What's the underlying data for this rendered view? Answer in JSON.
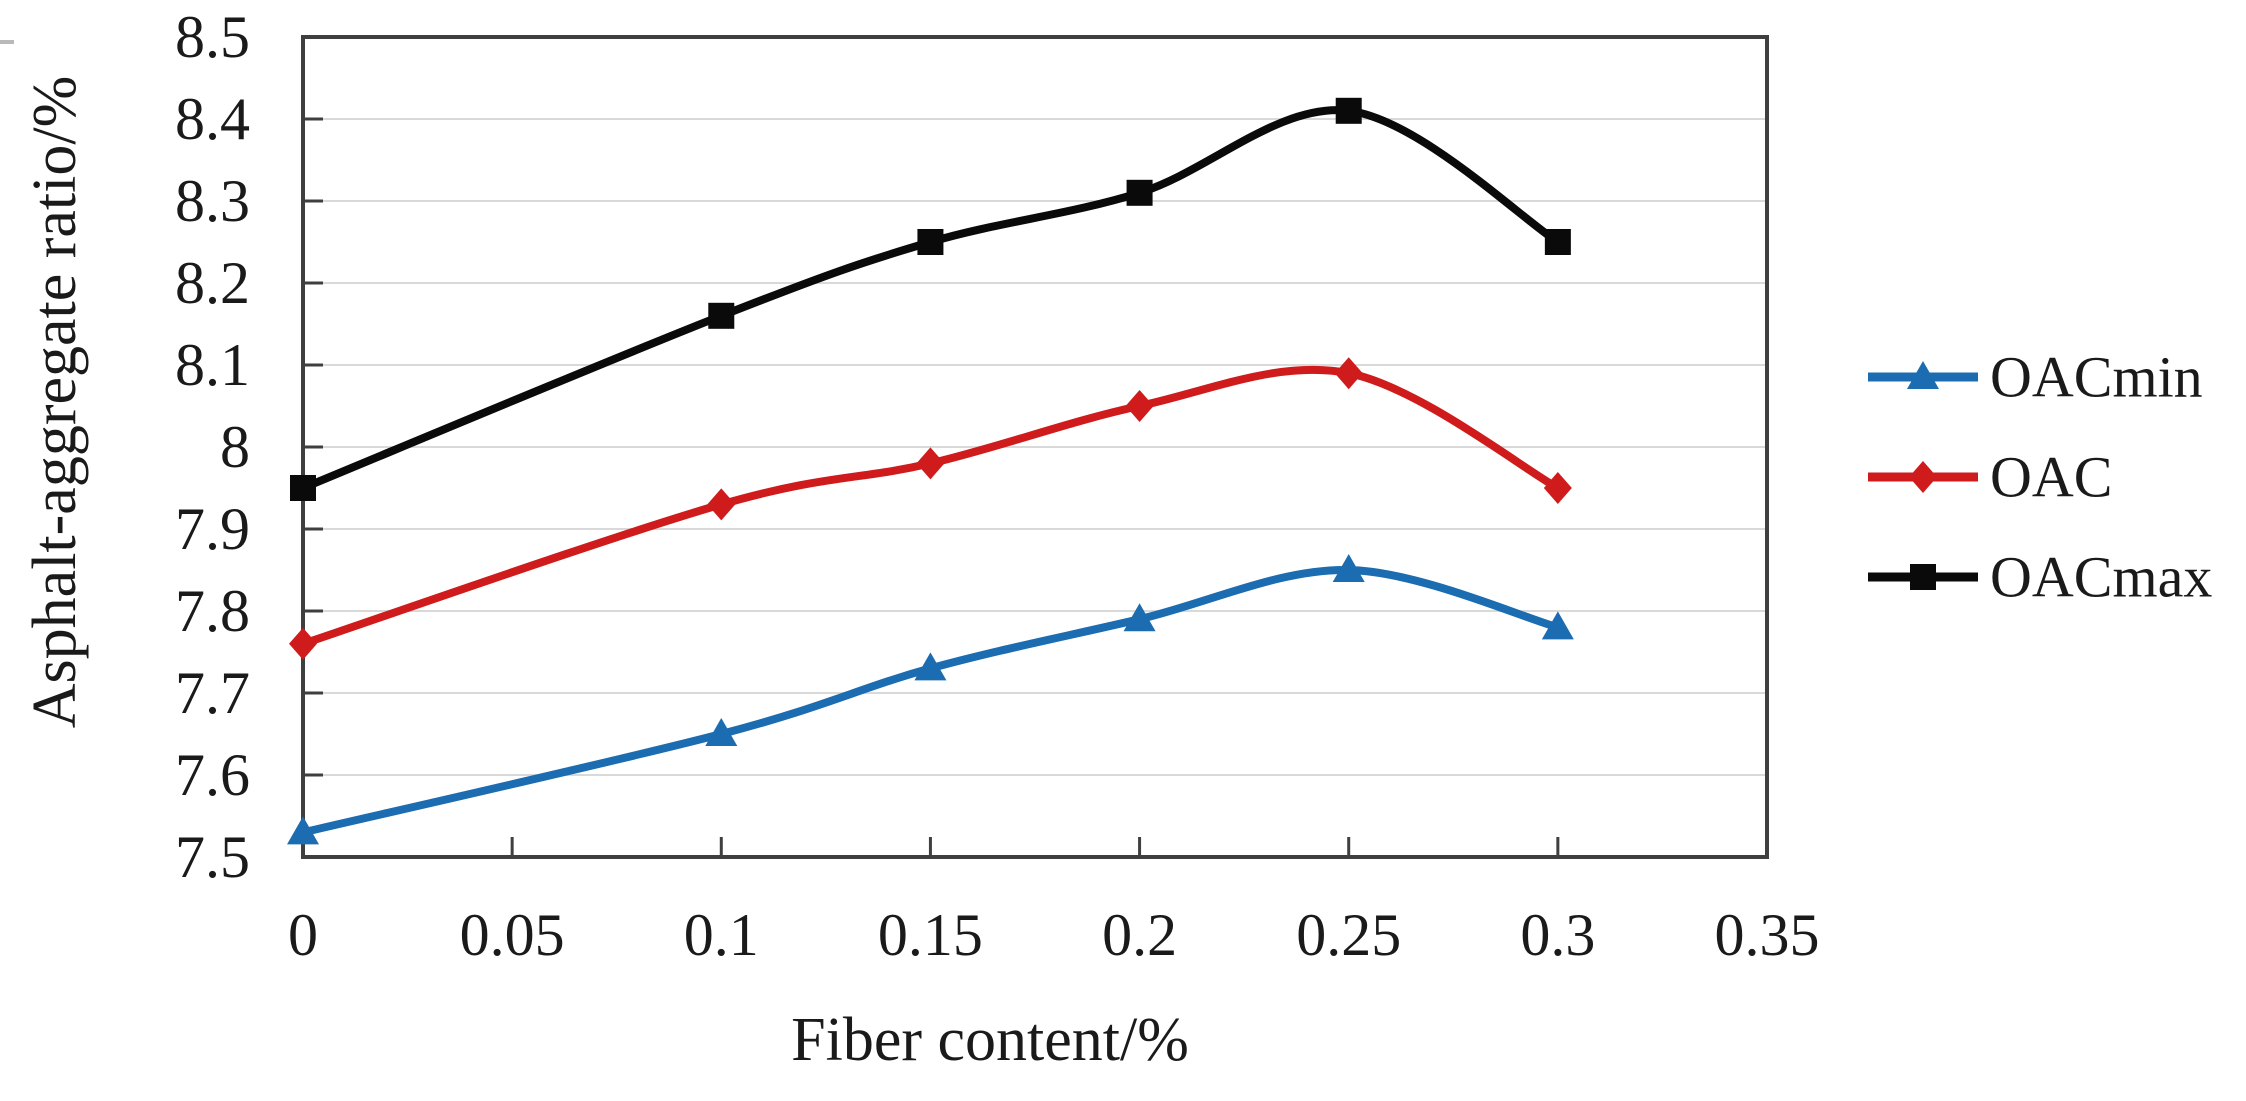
{
  "chart_data": {
    "type": "line",
    "title": "",
    "xlabel": "Fiber content/%",
    "ylabel": "Asphalt-aggregate ratio/%",
    "x": [
      0,
      0.1,
      0.15,
      0.2,
      0.25,
      0.3
    ],
    "series": [
      {
        "name": "OACmin",
        "color": "#1b6cb0",
        "marker": "triangle",
        "values": [
          7.53,
          7.65,
          7.73,
          7.79,
          7.85,
          7.78
        ]
      },
      {
        "name": "OAC",
        "color": "#cf1b1b",
        "marker": "diamond",
        "values": [
          7.76,
          7.93,
          7.98,
          8.05,
          8.09,
          7.95
        ]
      },
      {
        "name": "OACmax",
        "color": "#0a0a0a",
        "marker": "square",
        "values": [
          7.95,
          8.16,
          8.25,
          8.31,
          8.41,
          8.25
        ]
      }
    ],
    "xlim": [
      0,
      0.35
    ],
    "ylim": [
      7.5,
      8.5
    ],
    "x_ticks": [
      {
        "value": 0,
        "label": "0"
      },
      {
        "value": 0.05,
        "label": "0.05"
      },
      {
        "value": 0.1,
        "label": "0.1"
      },
      {
        "value": 0.15,
        "label": "0.15"
      },
      {
        "value": 0.2,
        "label": "0.2"
      },
      {
        "value": 0.25,
        "label": "0.25"
      },
      {
        "value": 0.3,
        "label": "0.3"
      },
      {
        "value": 0.35,
        "label": "0.35"
      }
    ],
    "y_ticks": [
      {
        "value": 8.5,
        "label": "8.5"
      },
      {
        "value": 8.4,
        "label": "8.4"
      },
      {
        "value": 8.3,
        "label": "8.3"
      },
      {
        "value": 8.2,
        "label": "8.2"
      },
      {
        "value": 8.1,
        "label": "8.1"
      },
      {
        "value": 8.0,
        "label": "8"
      },
      {
        "value": 7.9,
        "label": "7.9"
      },
      {
        "value": 7.8,
        "label": "7.8"
      },
      {
        "value": 7.7,
        "label": "7.7"
      },
      {
        "value": 7.6,
        "label": "7.6"
      },
      {
        "value": 7.5,
        "label": "7.5"
      }
    ],
    "grid": "horizontal",
    "smooth_lines": true,
    "legend_position": "right"
  },
  "style_colors": {
    "axis_line": "#3f3f3f",
    "gridline": "#d9d9d9",
    "text": "#1a1a1a",
    "background": "#ffffff"
  }
}
